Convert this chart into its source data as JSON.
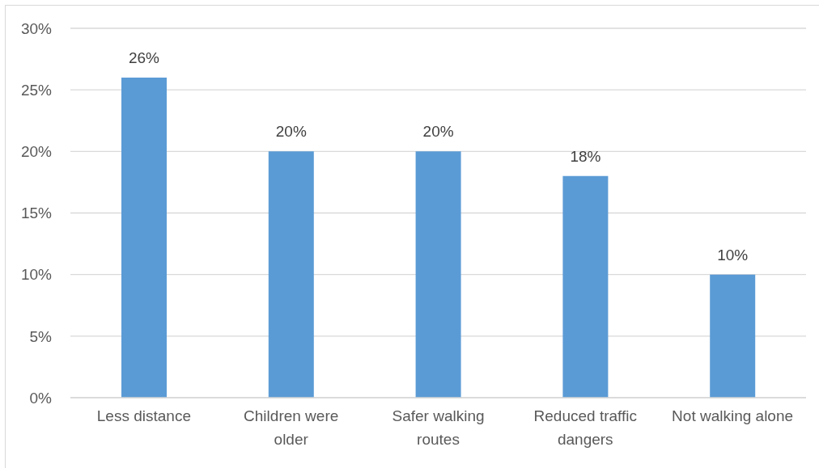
{
  "chart_data": {
    "type": "bar",
    "categories": [
      "Less distance",
      "Children were older",
      "Safer walking routes",
      "Reduced traffic dangers",
      "Not walking alone"
    ],
    "values": [
      26,
      20,
      20,
      18,
      10
    ],
    "color": "#5b9bd5",
    "ylim": [
      0,
      30
    ],
    "yticks": [
      {
        "value": 0,
        "label": "0%"
      },
      {
        "value": 5,
        "label": "5%"
      },
      {
        "value": 10,
        "label": "10%"
      },
      {
        "value": 15,
        "label": "15%"
      },
      {
        "value": 20,
        "label": "20%"
      },
      {
        "value": 25,
        "label": "25%"
      },
      {
        "value": 30,
        "label": "30%"
      }
    ],
    "grid": "y",
    "value_labels": [
      "26%",
      "20%",
      "20%",
      "18%",
      "10%"
    ]
  }
}
